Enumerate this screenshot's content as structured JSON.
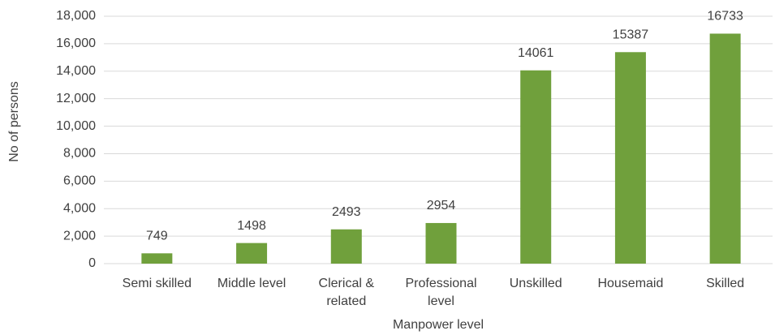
{
  "chart_data": {
    "type": "bar",
    "x_label": "Manpower level",
    "y_label": "No of persons",
    "categories": [
      "Semi skilled",
      "Middle level",
      "Clerical & related",
      "Professional level",
      "Unskilled",
      "Housemaid",
      "Skilled"
    ],
    "values": [
      749,
      1498,
      2493,
      2954,
      14061,
      15387,
      16733
    ],
    "color": "#70a03c",
    "ylim": [
      0,
      18000
    ],
    "yticks": [
      0,
      {
        "value": 2000,
        "label": "2,000"
      },
      {
        "value": 4000,
        "label": "4,000"
      },
      {
        "value": 6000,
        "label": "6,000"
      },
      {
        "value": 8000,
        "label": "8,000"
      },
      {
        "value": 10000,
        "label": "10,000"
      },
      {
        "value": 12000,
        "label": "12,000"
      },
      {
        "value": 14000,
        "label": "14,000"
      },
      {
        "value": 16000,
        "label": "16,000"
      },
      {
        "value": 18000,
        "label": "18,000"
      }
    ],
    "grid": true
  }
}
